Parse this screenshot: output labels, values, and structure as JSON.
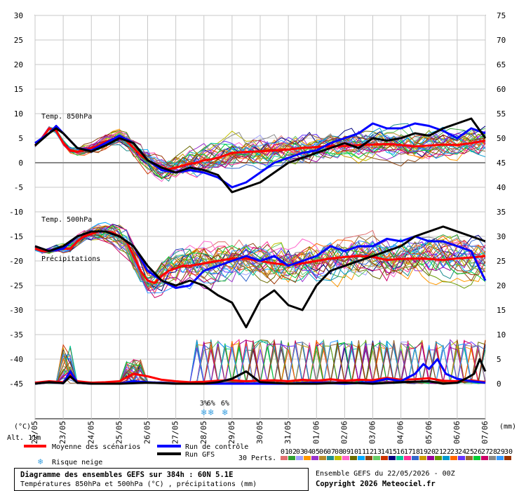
{
  "chart_data": {
    "type": "line",
    "title": "Diagramme des ensembles GEFS sur 384h : 60N 5.1E",
    "subtitle": "Températures 850hPa et 500hPa (°C) , précipitations (mm)",
    "xlabel": "",
    "left_axis_label": "(°C)",
    "right_axis_label": "(mm)",
    "altitude_label": "Alt. 11m",
    "ylim": [
      -45,
      30
    ],
    "y2lim": [
      0,
      75
    ],
    "yticks_left": [
      "30",
      "25",
      "20",
      "15",
      "10",
      "5",
      "0",
      "-5",
      "-10",
      "-15",
      "-20",
      "-25",
      "-30",
      "-35",
      "-40",
      "-45"
    ],
    "yticks_right": [
      "75",
      "70",
      "65",
      "60",
      "55",
      "50",
      "45",
      "40",
      "35",
      "30",
      "25",
      "20",
      "15",
      "10",
      "5",
      "0"
    ],
    "x_ticks": [
      "22/05",
      "23/05",
      "24/05",
      "25/05",
      "26/05",
      "27/05",
      "28/05",
      "29/05",
      "30/05",
      "31/05",
      "01/06",
      "02/06",
      "03/06",
      "04/06",
      "05/06",
      "06/06",
      "07/06"
    ],
    "panel_labels": [
      "Temp. 850hPa",
      "Temp. 500hPa",
      "Précipitations"
    ],
    "snow_risk": [
      {
        "x": 6.0,
        "label": "3%"
      },
      {
        "x": 6.25,
        "label": "6%"
      },
      {
        "x": 6.75,
        "label": "6%"
      }
    ],
    "series": [
      {
        "name": "Moyenne des scénarios",
        "color": "#ff0000",
        "panel": "t850",
        "x": [
          0,
          0.25,
          0.5,
          0.75,
          1,
          1.25,
          1.5,
          1.75,
          2,
          2.25,
          2.5,
          2.75,
          3,
          3.25,
          3.5,
          3.75,
          4,
          4.25,
          4.5,
          4.75,
          5,
          5.25,
          5.5,
          5.75,
          6,
          6.25,
          6.5,
          6.75,
          7,
          7.5,
          8,
          8.5,
          9,
          9.5,
          10,
          10.5,
          11,
          11.5,
          12,
          12.5,
          13,
          13.5,
          14,
          14.5,
          15,
          15.5,
          16
        ],
        "y": [
          3.5,
          5,
          7,
          6.5,
          4,
          2.5,
          2.2,
          2.6,
          3,
          3.5,
          4.3,
          4.8,
          5,
          4.5,
          3,
          1.5,
          0.5,
          -0.5,
          -1,
          -1.3,
          -1,
          -0.6,
          -0.2,
          0,
          0.5,
          0.7,
          1,
          1.5,
          2,
          2.2,
          2.3,
          2.5,
          2.7,
          3,
          3.2,
          3.4,
          3.4,
          3.6,
          3.7,
          3.8,
          3.6,
          3.3,
          3.5,
          3.7,
          3.6,
          4,
          4.5
        ]
      },
      {
        "name": "Run de contrôle",
        "color": "#0000ff",
        "panel": "t850",
        "x": [
          0,
          0.5,
          0.75,
          1,
          1.5,
          2,
          2.5,
          3,
          3.5,
          4,
          4.5,
          5,
          5.5,
          6,
          6.5,
          7,
          7.5,
          8,
          8.5,
          9,
          9.5,
          10,
          10.5,
          11,
          11.5,
          12,
          12.5,
          13,
          13.5,
          14,
          14.5,
          15,
          15.5,
          16
        ],
        "y": [
          4,
          6,
          7.5,
          6,
          3,
          2.5,
          4,
          5.5,
          4,
          0.5,
          -1.5,
          -2,
          -1.5,
          -2,
          -3,
          -5,
          -4,
          -2,
          0,
          1,
          2,
          2.5,
          4,
          5,
          6,
          8,
          7,
          7,
          8,
          7.5,
          6.5,
          5,
          7,
          6
        ]
      },
      {
        "name": "Run GFS",
        "color": "#000000",
        "panel": "t850",
        "x": [
          0,
          0.5,
          0.75,
          1,
          1.5,
          2,
          2.5,
          3,
          3.5,
          4,
          4.5,
          5,
          5.5,
          6,
          6.5,
          7,
          7.5,
          8,
          8.5,
          9,
          9.5,
          10,
          10.5,
          11,
          11.5,
          12,
          12.5,
          13,
          13.5,
          14,
          14.5,
          15,
          15.5,
          16
        ],
        "y": [
          3.5,
          6,
          7,
          6,
          3,
          2.3,
          3.5,
          5,
          4,
          0.5,
          -1,
          -2,
          -1,
          -1.5,
          -2.5,
          -6,
          -5,
          -4,
          -2,
          0,
          1,
          2,
          3,
          4,
          3,
          5,
          4.5,
          5,
          6,
          5.5,
          7,
          8,
          9,
          5
        ]
      },
      {
        "name": "Moyenne des scénarios",
        "color": "#ff0000",
        "panel": "t500",
        "x": [
          0,
          0.25,
          0.5,
          0.75,
          1,
          1.25,
          1.5,
          1.75,
          2,
          2.25,
          2.5,
          2.75,
          3,
          3.25,
          3.5,
          3.75,
          4,
          4.25,
          4.5,
          4.75,
          5,
          5.25,
          5.5,
          6,
          6.5,
          7,
          7.5,
          8,
          8.5,
          9,
          9.5,
          10,
          10.5,
          11,
          11.5,
          12,
          12.5,
          13,
          13.5,
          14,
          14.5,
          15,
          15.5,
          16
        ],
        "y": [
          -17.5,
          -18,
          -18,
          -17.5,
          -17.5,
          -17.5,
          -16,
          -15,
          -14.5,
          -14,
          -14,
          -14.2,
          -15,
          -16,
          -19,
          -22,
          -24,
          -24.5,
          -23,
          -22,
          -21.5,
          -21,
          -21,
          -20.5,
          -20,
          -19.5,
          -19.5,
          -20,
          -20.5,
          -20.8,
          -20.5,
          -20,
          -19.5,
          -19.2,
          -19,
          -19.2,
          -19.8,
          -19.6,
          -19.5,
          -19.6,
          -19.8,
          -19.5,
          -19.3,
          -19
        ]
      },
      {
        "name": "Run de contrôle",
        "color": "#0000ff",
        "panel": "t500",
        "x": [
          0,
          0.5,
          1,
          1.5,
          2,
          2.5,
          3,
          3.5,
          4,
          4.5,
          5,
          5.5,
          6,
          6.5,
          7,
          7.5,
          8,
          8.5,
          9,
          9.5,
          10,
          10.5,
          11,
          11.5,
          12,
          12.5,
          13,
          13.5,
          14,
          14.5,
          15,
          15.5,
          16
        ],
        "y": [
          -17,
          -18,
          -17.5,
          -15,
          -14,
          -14,
          -15,
          -17,
          -22,
          -24,
          -25.5,
          -25,
          -22,
          -21,
          -20,
          -19,
          -20,
          -19,
          -21,
          -20,
          -19,
          -17,
          -18,
          -17,
          -17,
          -15.5,
          -16,
          -15,
          -16,
          -16,
          -17,
          -18,
          -24
        ]
      },
      {
        "name": "Run GFS",
        "color": "#000000",
        "panel": "t500",
        "x": [
          0,
          0.5,
          1,
          1.5,
          2,
          2.5,
          3,
          3.5,
          4,
          4.5,
          5,
          5.5,
          6,
          6.5,
          7,
          7.5,
          8,
          8.5,
          9,
          9.5,
          10,
          10.5,
          11,
          11.5,
          12,
          12.5,
          13,
          13.5,
          14,
          14.5,
          15,
          15.5,
          16
        ],
        "y": [
          -17,
          -18,
          -17,
          -15,
          -14,
          -14,
          -15,
          -17,
          -21,
          -24,
          -25,
          -24,
          -25,
          -27,
          -28.5,
          -33.5,
          -28,
          -26,
          -29,
          -30,
          -25,
          -22,
          -21,
          -20,
          -19,
          -18,
          -17,
          -15,
          -14,
          -13,
          -14,
          -15,
          -16
        ]
      },
      {
        "name": "Moyenne des scénarios",
        "color": "#ff0000",
        "panel": "precip",
        "x": [
          0,
          0.5,
          1,
          1.25,
          1.5,
          2,
          2.5,
          3,
          3.5,
          4,
          4.5,
          5,
          5.5,
          6,
          6.5,
          7,
          7.5,
          8,
          8.5,
          9,
          9.5,
          10,
          10.5,
          11,
          11.5,
          12,
          12.5,
          13,
          13.5,
          14,
          14.5,
          15,
          15.5,
          16
        ],
        "y": [
          0.2,
          0.5,
          0.3,
          2,
          0.5,
          0.2,
          0.3,
          0.5,
          2,
          1.5,
          0.8,
          0.5,
          0.3,
          0.4,
          0.6,
          0.7,
          0.5,
          0.6,
          0.7,
          0.5,
          0.8,
          0.6,
          0.9,
          0.6,
          0.8,
          0.7,
          1.2,
          0.8,
          0.9,
          1.1,
          0.6,
          0.5,
          0.7,
          0.3
        ]
      },
      {
        "name": "Run de contrôle",
        "color": "#0000ff",
        "panel": "precip",
        "x": [
          0,
          0.5,
          1,
          1.25,
          1.5,
          2,
          3,
          3.5,
          4,
          5,
          6,
          7,
          8,
          9,
          10,
          11,
          12,
          12.5,
          13,
          13.5,
          13.8,
          14,
          14.3,
          14.6,
          15,
          15.5,
          16
        ],
        "y": [
          0,
          0.3,
          0.1,
          2.5,
          0.2,
          0,
          0,
          0.5,
          0.3,
          0,
          0,
          0,
          0,
          0,
          0.2,
          0,
          0.3,
          1,
          0.5,
          2,
          4,
          3,
          5,
          2,
          1,
          0.5,
          0.2
        ]
      },
      {
        "name": "Run GFS",
        "color": "#000000",
        "panel": "precip",
        "x": [
          0,
          0.5,
          1,
          1.25,
          1.5,
          2,
          3,
          4,
          5,
          6,
          6.5,
          7,
          7.5,
          8,
          9,
          10,
          11,
          12,
          13,
          14,
          14.5,
          15,
          15.3,
          15.6,
          15.8,
          16
        ],
        "y": [
          0,
          0.3,
          0.1,
          1.5,
          0.2,
          0,
          0,
          0.2,
          0,
          0,
          0.3,
          1,
          2.5,
          0.3,
          0,
          0,
          0.2,
          0,
          0.3,
          0.5,
          0,
          0.2,
          1,
          2,
          5,
          2.5
        ]
      }
    ],
    "ensemble_members": 30,
    "ensemble_colors": [
      "#e07070",
      "#30a030",
      "#a0a0ff",
      "#ff9900",
      "#9933cc",
      "#b58a2a",
      "#1f8f8f",
      "#c0c000",
      "#ff66cc",
      "#6b6b00",
      "#00aaff",
      "#8b4513",
      "#66cc66",
      "#cc3300",
      "#000080",
      "#00cc99",
      "#ff3399",
      "#3366cc",
      "#cc9900",
      "#990099",
      "#669900",
      "#0099cc",
      "#ff6600",
      "#6633ff",
      "#996633",
      "#00cc33",
      "#cc0066",
      "#888888",
      "#3399ff",
      "#993300"
    ]
  },
  "legend": {
    "mean_label": "Moyenne des scénarios",
    "control_label": "Run de contrôle",
    "gfs_label": "Run GFS",
    "snow_label": "Risque neige",
    "perts_label": "30 Perts.",
    "pert_numbers": [
      "01",
      "02",
      "03",
      "04",
      "05",
      "06",
      "07",
      "08",
      "09",
      "10",
      "11",
      "12",
      "13",
      "14",
      "15",
      "16",
      "17",
      "18",
      "19",
      "20",
      "21",
      "22",
      "23",
      "24",
      "25",
      "26",
      "27",
      "28",
      "29",
      "30"
    ]
  },
  "info": {
    "title": "Diagramme des ensembles GEFS sur 384h : 60N 5.1E",
    "subtitle": "Températures 850hPa et 500hPa (°C) , précipitations (mm)",
    "run": "Ensemble GEFS du 22/05/2026 - 00Z",
    "copyright": "Copyright 2026 Meteociel.fr"
  }
}
